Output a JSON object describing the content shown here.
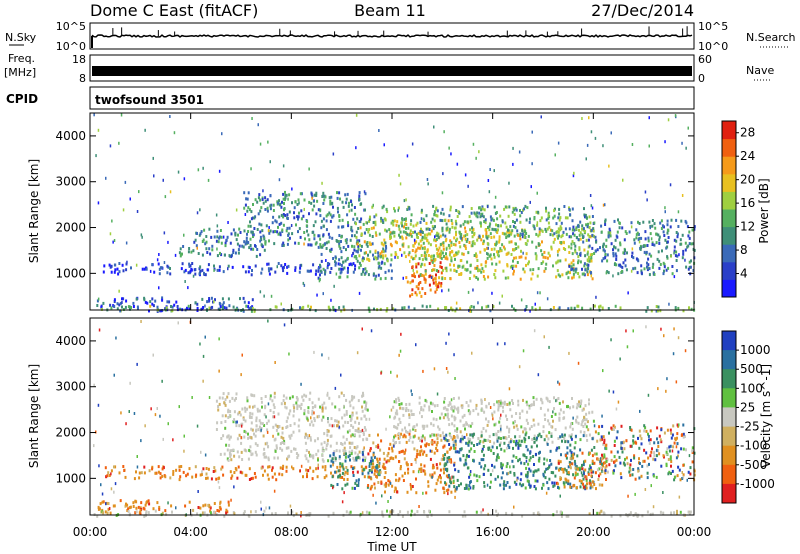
{
  "header": {
    "radar": "Dome C East (fitACF)",
    "beam": "Beam 11",
    "date": "27/Dec/2014"
  },
  "noise_panel": {
    "left_label": "N.Sky",
    "left_ticks": [
      "10^5",
      "10^0"
    ],
    "right_label": "N.Search",
    "right_ticks": [
      "10^5",
      "10^0"
    ]
  },
  "freq_panel": {
    "left_label_line1": "Freq.",
    "left_label_line2": "[MHz]",
    "left_ticks": [
      "18",
      "8"
    ],
    "right_label": "Nave",
    "right_ticks": [
      "60",
      "0"
    ]
  },
  "cpid_panel": {
    "label": "CPID",
    "value": "twofsound 3501"
  },
  "colors": {
    "power": [
      "#1a1aff",
      "#2a3fc8",
      "#3a6ab8",
      "#3f8f78",
      "#55b060",
      "#9fcf40",
      "#e8c020",
      "#f59a1a",
      "#f06010",
      "#e02010"
    ],
    "velocity": [
      "#2040c0",
      "#2a70a0",
      "#3a9060",
      "#60c040",
      "#c8c8c0",
      "#d0b060",
      "#e09020",
      "#f06010",
      "#e02020"
    ]
  },
  "chart_data": [
    {
      "type": "heatmap",
      "title": "",
      "xlabel": "",
      "ylabel": "Slant Range [km]",
      "x_ticks": [
        "00:00",
        "04:00",
        "08:00",
        "12:00",
        "16:00",
        "20:00",
        "00:00"
      ],
      "xlim_hours": [
        0,
        24
      ],
      "y_ticks": [
        1000,
        2000,
        3000,
        4000
      ],
      "ylim_km": [
        200,
        4500
      ],
      "colorbar": {
        "label": "Power [dB]",
        "ticks": [
          4,
          8,
          12,
          16,
          20,
          24,
          28
        ],
        "range": [
          0,
          30
        ]
      },
      "regions": [
        {
          "t0": 0.2,
          "t1": 6.5,
          "r0": 200,
          "r1": 500,
          "level": 0.18
        },
        {
          "t0": 0.5,
          "t1": 10.5,
          "r0": 1000,
          "r1": 1250,
          "level": 0.15
        },
        {
          "t0": 3.5,
          "t1": 7.0,
          "r0": 1400,
          "r1": 2000,
          "level": 0.3
        },
        {
          "t0": 6.0,
          "t1": 11.0,
          "r0": 1600,
          "r1": 2800,
          "level": 0.32
        },
        {
          "t0": 9.0,
          "t1": 12.0,
          "r0": 900,
          "r1": 1700,
          "level": 0.3
        },
        {
          "t0": 10.5,
          "t1": 15.0,
          "r0": 1300,
          "r1": 2200,
          "level": 0.62
        },
        {
          "t0": 12.5,
          "t1": 14.0,
          "r0": 500,
          "r1": 1300,
          "level": 0.85
        },
        {
          "t0": 13.0,
          "t1": 20.0,
          "r0": 900,
          "r1": 2000,
          "level": 0.58
        },
        {
          "t0": 11.0,
          "t1": 20.0,
          "r0": 1800,
          "r1": 2500,
          "level": 0.42
        },
        {
          "t0": 19.0,
          "t1": 24.0,
          "r0": 1000,
          "r1": 2200,
          "level": 0.3
        },
        {
          "t0": 0.0,
          "t1": 24.0,
          "r0": 200,
          "r1": 320,
          "level": 0.45
        }
      ]
    },
    {
      "type": "heatmap",
      "title": "",
      "xlabel": "Time UT",
      "ylabel": "Slant Range [km]",
      "x_ticks": [
        "00:00",
        "04:00",
        "08:00",
        "12:00",
        "16:00",
        "20:00",
        "00:00"
      ],
      "xlim_hours": [
        0,
        24
      ],
      "y_ticks": [
        1000,
        2000,
        3000,
        4000
      ],
      "ylim_km": [
        200,
        4500
      ],
      "colorbar": {
        "label": "Velocity [m s^-1]",
        "ticks": [
          1000,
          500,
          100,
          25,
          -25,
          -100,
          -500,
          -1000
        ]
      },
      "regions": [
        {
          "t0": 0.2,
          "t1": 5.5,
          "r0": 250,
          "r1": 550,
          "vel": "neg"
        },
        {
          "t0": 0.5,
          "t1": 11.0,
          "r0": 1000,
          "r1": 1300,
          "vel": "neg"
        },
        {
          "t0": 5.0,
          "t1": 11.0,
          "r0": 1400,
          "r1": 2900,
          "vel": "ground"
        },
        {
          "t0": 9.5,
          "t1": 11.5,
          "r0": 800,
          "r1": 1600,
          "vel": "pos"
        },
        {
          "t0": 11.0,
          "t1": 14.5,
          "r0": 700,
          "r1": 2000,
          "vel": "neg"
        },
        {
          "t0": 12.0,
          "t1": 20.0,
          "r0": 1800,
          "r1": 2800,
          "vel": "ground"
        },
        {
          "t0": 14.0,
          "t1": 20.0,
          "r0": 800,
          "r1": 2000,
          "vel": "pos"
        },
        {
          "t0": 18.5,
          "t1": 20.5,
          "r0": 800,
          "r1": 1600,
          "vel": "neg"
        },
        {
          "t0": 20.0,
          "t1": 24.0,
          "r0": 1000,
          "r1": 2200,
          "vel": "mixed"
        },
        {
          "t0": 0.0,
          "t1": 24.0,
          "r0": 200,
          "r1": 320,
          "vel": "ground"
        }
      ]
    }
  ]
}
